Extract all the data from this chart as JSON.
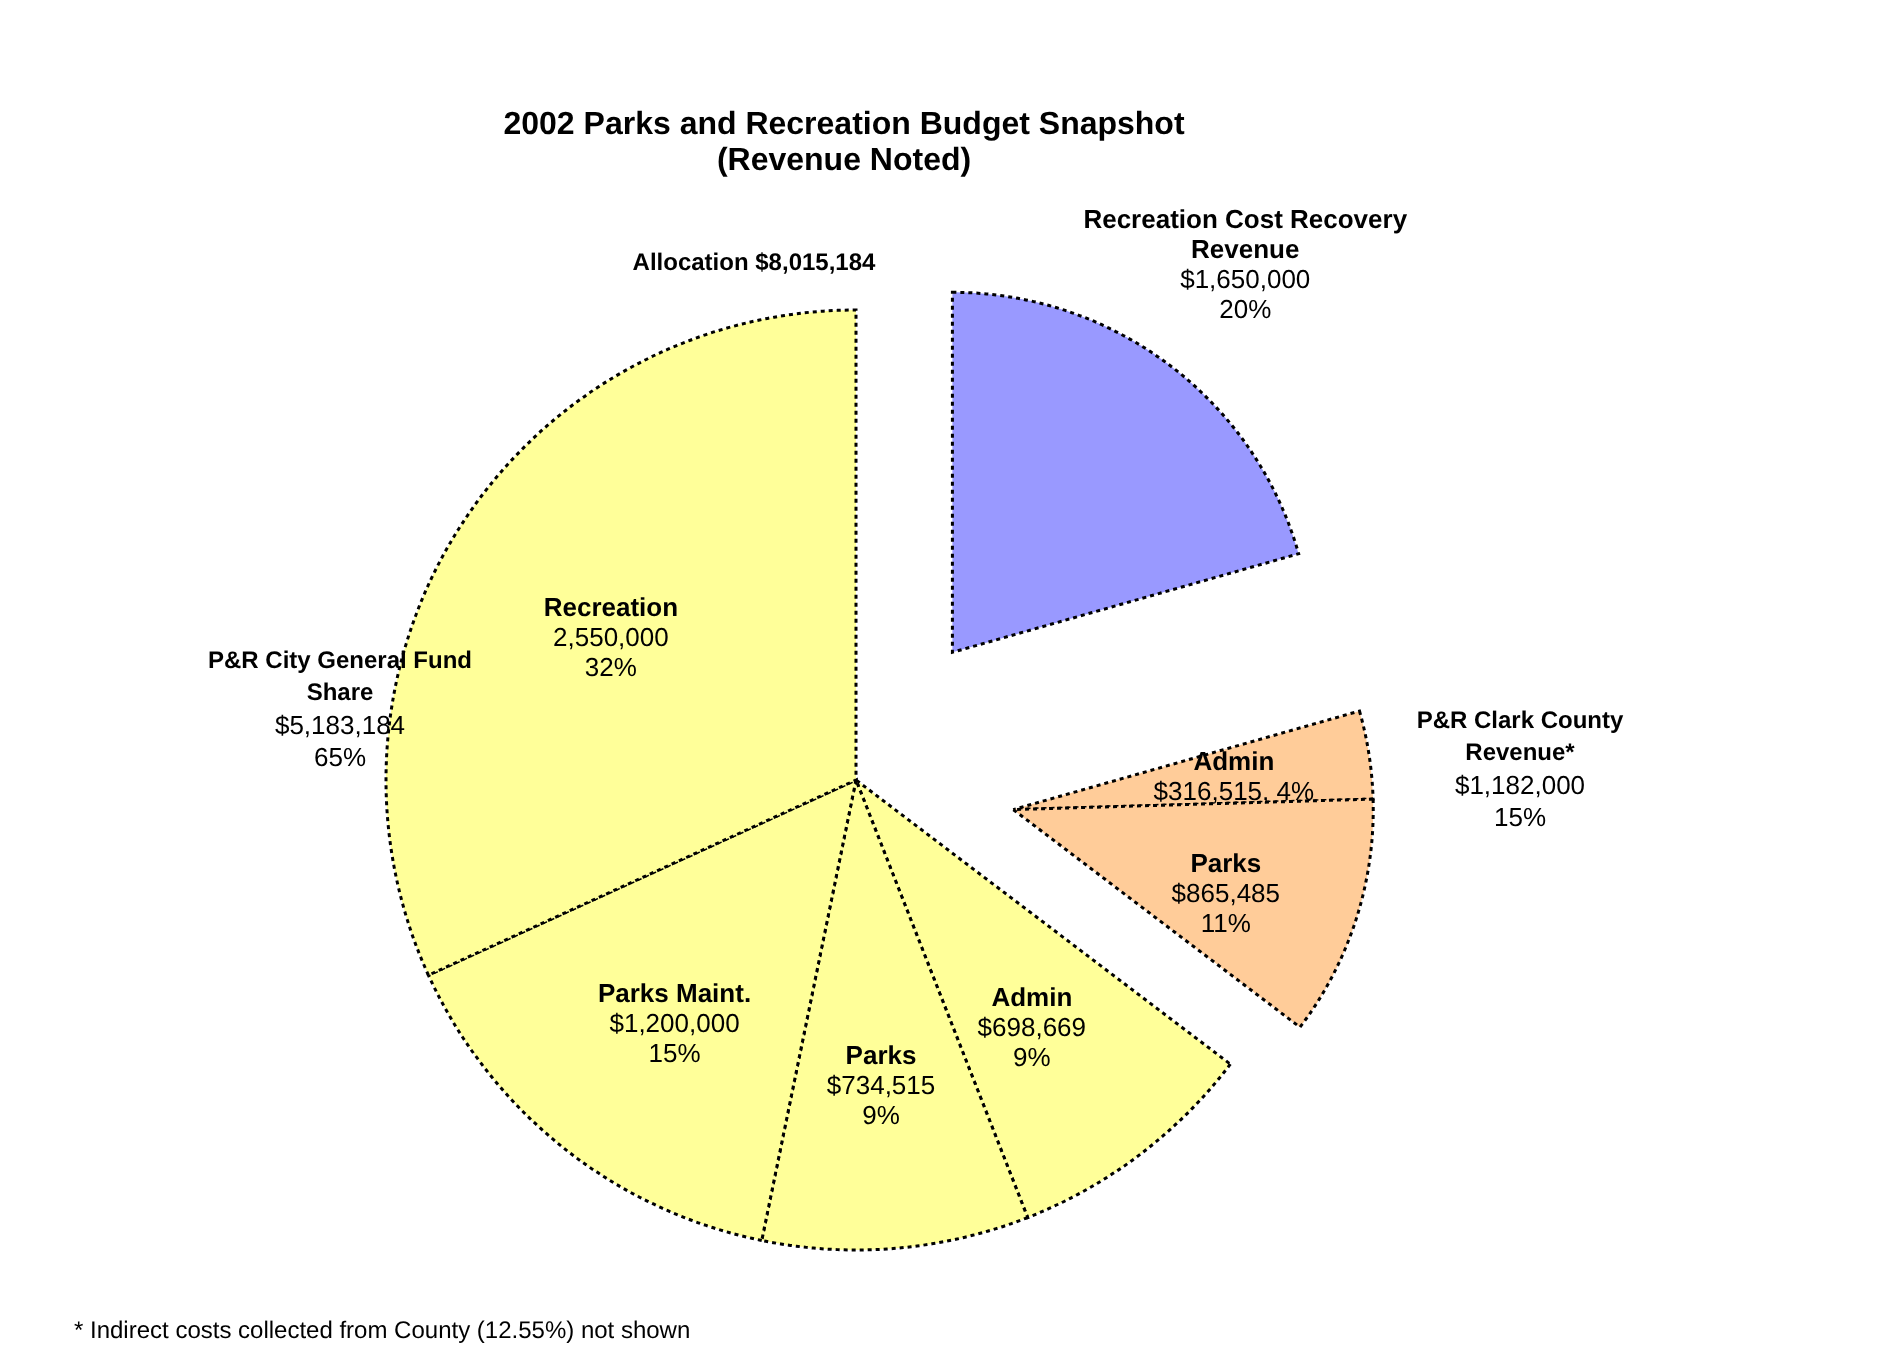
{
  "chart_data": {
    "type": "pie",
    "title": "2002 Parks and Recreation Budget Snapshot\n(Revenue Noted)",
    "categories": [
      "Recreation Cost Recovery Revenue",
      "Admin",
      "Parks",
      "Admin",
      "Parks",
      "Parks Maint.",
      "Recreation"
    ],
    "values": [
      1650000,
      316515,
      865485,
      698669,
      734515,
      1200000,
      2550000
    ],
    "colors": [
      "#9999ff",
      "#ffcc99",
      "#ffcc99",
      "#ffff99",
      "#ffff99",
      "#ffff99",
      "#ffff99"
    ],
    "value_labels": [
      "$1,650,000\n20%",
      "$316,515, 4%",
      "$865,485\n11%",
      "$698,669\n9%",
      "$734,515\n9%",
      "$1,200,000\n15%",
      "2,550,000\n32%"
    ],
    "annotations": [
      "Allocation $8,015,184",
      "P&R City General Fund\nShare\n$5,183,184\n65%",
      "P&R Clark County\nRevenue*\n$1,182,000\n15%",
      "* Indirect costs collected from County (12.55%) not shown"
    ]
  }
}
